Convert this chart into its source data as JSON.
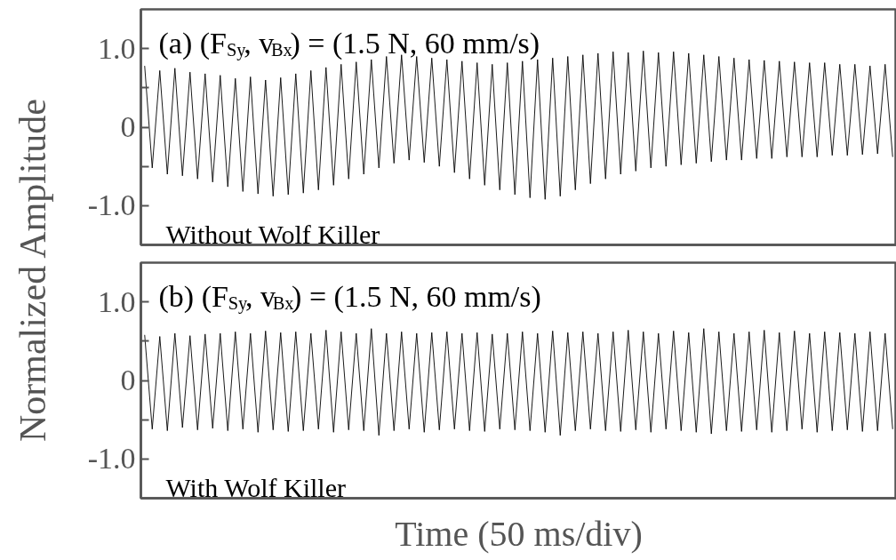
{
  "chart_data": [
    {
      "type": "line",
      "ylabel": "Normalized Amplitude",
      "annotations": [
        "(a)  (F$_{Sy}$, v$_{Bx}$) = (1.5 N, 60 mm/s)",
        "Without Wolf Killer"
      ],
      "ylim": [
        -1.5,
        1.5
      ],
      "tick_labels": "y",
      "grid": false,
      "marker": "none",
      "line_style": "solid",
      "yticks": [
        {
          "value": -1,
          "label": "-1.0"
        },
        {
          "value": -0.5,
          "label": null
        },
        0,
        {
          "value": 0.5,
          "label": null
        },
        {
          "value": 1,
          "label": "1.0"
        }
      ],
      "categories": [
        null,
        null,
        null,
        null,
        null,
        null,
        null,
        null,
        null,
        null,
        null,
        null,
        null,
        null,
        null,
        null,
        null,
        null,
        null,
        null,
        null,
        null,
        null,
        null,
        null,
        null,
        null,
        null,
        null,
        null,
        null,
        null,
        null,
        null,
        null,
        null,
        null,
        null,
        null,
        null,
        null,
        null,
        null,
        null,
        null,
        null,
        null,
        null,
        null,
        null,
        null,
        null,
        null,
        null,
        null,
        null,
        null,
        null,
        null,
        null,
        null,
        null,
        null,
        null,
        null,
        null,
        null,
        null,
        null,
        null,
        null,
        null,
        null,
        null,
        null,
        null,
        null,
        null,
        null,
        null,
        null,
        null,
        null,
        null,
        null,
        null,
        null,
        null,
        null,
        null,
        null,
        null,
        null,
        null,
        null,
        null,
        null,
        null,
        null,
        null
      ],
      "series": [
        {
          "color": "#000000",
          "values": [
            0.78,
            -0.52,
            0.72,
            -0.6,
            0.75,
            -0.62,
            0.7,
            -0.66,
            0.68,
            -0.7,
            0.66,
            -0.76,
            0.62,
            -0.82,
            0.64,
            -0.85,
            0.6,
            -0.88,
            0.63,
            -0.86,
            0.68,
            -0.84,
            0.72,
            -0.8,
            0.76,
            -0.74,
            0.8,
            -0.66,
            0.83,
            -0.6,
            0.86,
            -0.52,
            0.9,
            -0.46,
            0.92,
            -0.42,
            0.9,
            -0.45,
            0.88,
            -0.5,
            0.86,
            -0.58,
            0.84,
            -0.66,
            0.82,
            -0.74,
            0.8,
            -0.8,
            0.82,
            -0.86,
            0.84,
            -0.9,
            0.86,
            -0.92,
            0.88,
            -0.88,
            0.9,
            -0.8,
            0.92,
            -0.72,
            0.94,
            -0.66,
            0.96,
            -0.6,
            0.95,
            -0.56,
            0.97,
            -0.52,
            0.95,
            -0.5,
            0.96,
            -0.48,
            0.94,
            -0.46,
            0.92,
            -0.44,
            0.9,
            -0.42,
            0.88,
            -0.42,
            0.86,
            -0.4,
            0.85,
            -0.4,
            0.84,
            -0.38,
            0.83,
            -0.38,
            0.82,
            -0.38,
            0.82,
            -0.36,
            0.8,
            -0.36,
            0.8,
            -0.35,
            0.78,
            -0.34,
            0.8,
            -0.38
          ]
        }
      ]
    },
    {
      "type": "line",
      "xlabel": "Time (50 ms/div)",
      "annotations": [
        "(b)  (F$_{Sy}$, v$_{Bx}$) = (1.5 N, 60 mm/s)",
        "With Wolf Killer"
      ],
      "ylim": [
        -1.5,
        1.5
      ],
      "tick_labels": "y",
      "grid": false,
      "marker": "none",
      "line_style": "solid",
      "yticks": [
        {
          "value": -1,
          "label": "-1.0"
        },
        {
          "value": -0.5,
          "label": null
        },
        0,
        {
          "value": 0.5,
          "label": null
        },
        {
          "value": 1,
          "label": "1.0"
        }
      ],
      "categories": [
        null,
        null,
        null,
        null,
        null,
        null,
        null,
        null,
        null,
        null,
        null,
        null,
        null,
        null,
        null,
        null,
        null,
        null,
        null,
        null,
        null,
        null,
        null,
        null,
        null,
        null,
        null,
        null,
        null,
        null,
        null,
        null,
        null,
        null,
        null,
        null,
        null,
        null,
        null,
        null,
        null,
        null,
        null,
        null,
        null,
        null,
        null,
        null,
        null,
        null,
        null,
        null,
        null,
        null,
        null,
        null,
        null,
        null,
        null,
        null,
        null,
        null,
        null,
        null,
        null,
        null,
        null,
        null,
        null,
        null,
        null,
        null,
        null,
        null,
        null,
        null,
        null,
        null,
        null,
        null,
        null,
        null,
        null,
        null,
        null,
        null,
        null,
        null,
        null,
        null,
        null,
        null,
        null,
        null,
        null,
        null,
        null,
        null,
        null,
        null
      ],
      "series": [
        {
          "color": "#000000",
          "values": [
            0.58,
            -0.62,
            0.56,
            -0.64,
            0.6,
            -0.6,
            0.57,
            -0.63,
            0.59,
            -0.61,
            0.6,
            -0.64,
            0.62,
            -0.62,
            0.6,
            -0.66,
            0.63,
            -0.63,
            0.61,
            -0.65,
            0.62,
            -0.64,
            0.6,
            -0.62,
            0.64,
            -0.66,
            0.62,
            -0.63,
            0.6,
            -0.64,
            0.66,
            -0.7,
            0.6,
            -0.64,
            0.62,
            -0.62,
            0.6,
            -0.66,
            0.61,
            -0.63,
            0.62,
            -0.62,
            0.6,
            -0.64,
            0.61,
            -0.65,
            0.59,
            -0.62,
            0.6,
            -0.63,
            0.62,
            -0.64,
            0.6,
            -0.66,
            0.63,
            -0.7,
            0.61,
            -0.64,
            0.62,
            -0.62,
            0.6,
            -0.64,
            0.62,
            -0.65,
            0.64,
            -0.63,
            0.62,
            -0.66,
            0.6,
            -0.62,
            0.63,
            -0.64,
            0.61,
            -0.66,
            0.66,
            -0.68,
            0.62,
            -0.64,
            0.6,
            -0.65,
            0.62,
            -0.63,
            0.64,
            -0.66,
            0.61,
            -0.64,
            0.63,
            -0.62,
            0.6,
            -0.66,
            0.62,
            -0.64,
            0.61,
            -0.63,
            0.6,
            -0.65,
            0.62,
            -0.64,
            0.6,
            -0.62
          ]
        }
      ]
    }
  ]
}
